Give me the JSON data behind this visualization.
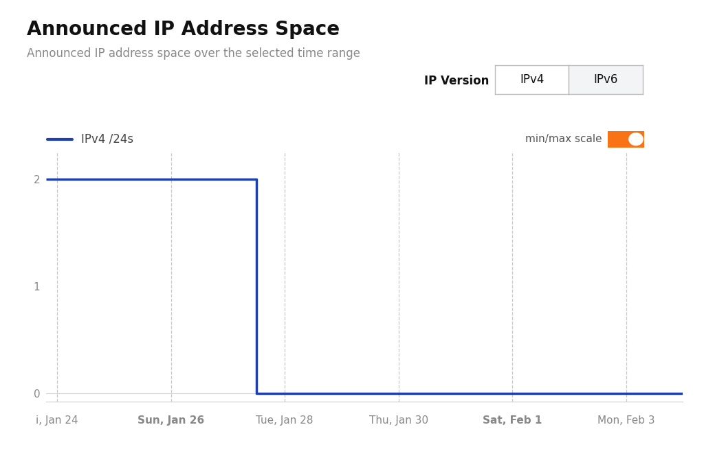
{
  "title": "Announced IP Address Space",
  "subtitle": "Announced IP address space over the selected time range",
  "legend_label": "IPv4 /24s",
  "legend_line_color": "#1e40af",
  "line_color": "#1e40af",
  "line_width": 2.5,
  "background_color": "#ffffff",
  "plot_bg_color": "#ffffff",
  "x_labels": [
    "i, Jan 24",
    "Sun, Jan 26",
    "Tue, Jan 28",
    "Thu, Jan 30",
    "Sat, Feb 1",
    "Mon, Feb 3"
  ],
  "x_label_bold": [
    false,
    true,
    false,
    false,
    true,
    false
  ],
  "x_positions": [
    0,
    2,
    4,
    6,
    8,
    10
  ],
  "drop_x": 3.5,
  "y_ticks": [
    0,
    1,
    2
  ],
  "y_tick_labels": [
    "0",
    "1",
    "2"
  ],
  "ylim": [
    -0.08,
    2.25
  ],
  "xlim": [
    -0.2,
    11.0
  ],
  "grid_color": "#bbbbbb",
  "grid_style": "--",
  "grid_alpha": 0.8,
  "ip_version_label": "IP Version",
  "toggle_label": "min/max scale",
  "toggle_color": "#f97316",
  "ip_version_options": [
    "IPv4",
    "IPv6"
  ],
  "title_fontsize": 20,
  "subtitle_fontsize": 12,
  "axis_label_fontsize": 11,
  "tick_color": "#888888"
}
